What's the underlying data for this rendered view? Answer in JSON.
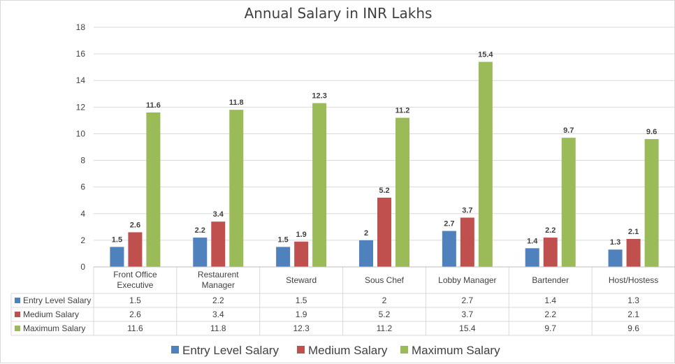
{
  "chart_data": {
    "type": "bar",
    "title": "Annual Salary in INR Lakhs",
    "categories": [
      [
        "Front Office",
        "Executive"
      ],
      [
        "Restaurent",
        "Manager"
      ],
      [
        "Steward"
      ],
      [
        "Sous Chef"
      ],
      [
        "Lobby Manager"
      ],
      [
        "Bartender"
      ],
      [
        "Host/Hostess"
      ]
    ],
    "series": [
      {
        "name": "Entry Level Salary",
        "color": "#4f81bd",
        "values": [
          1.5,
          2.2,
          1.5,
          2,
          2.7,
          1.4,
          1.3
        ]
      },
      {
        "name": "Medium Salary",
        "color": "#c0504d",
        "values": [
          2.6,
          3.4,
          1.9,
          5.2,
          3.7,
          2.2,
          2.1
        ]
      },
      {
        "name": "Maximum Salary",
        "color": "#9bbb59",
        "values": [
          11.6,
          11.8,
          12.3,
          11.2,
          15.4,
          9.7,
          9.6
        ]
      }
    ],
    "ylim": [
      0,
      18
    ],
    "yticks": [
      0,
      2,
      4,
      6,
      8,
      10,
      12,
      14,
      16,
      18
    ],
    "grid": true,
    "data_table": true,
    "legend_position": "bottom"
  }
}
